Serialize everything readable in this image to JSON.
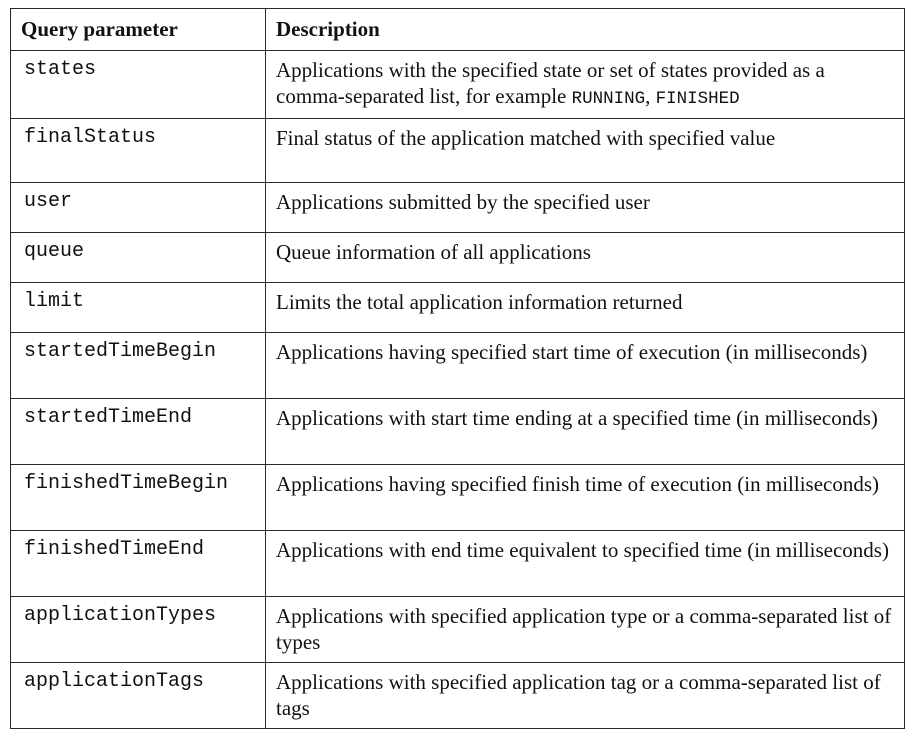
{
  "table": {
    "headers": {
      "param": "Query parameter",
      "description": "Description"
    },
    "rows": [
      {
        "param": "states",
        "description": "Applications with the specified state or set of states provided as a comma-separated list, for example ",
        "description_code_1": "RUNNING",
        "description_sep": ", ",
        "description_code_2": "FINISHED"
      },
      {
        "param": "finalStatus",
        "description": "Final status of the application matched with specified value"
      },
      {
        "param": "user",
        "description": "Applications submitted by the specified user"
      },
      {
        "param": "queue",
        "description": "Queue information of all applications"
      },
      {
        "param": "limit",
        "description": "Limits the total application information returned"
      },
      {
        "param": "startedTimeBegin",
        "description": "Applications having specified start time of execution (in milliseconds)"
      },
      {
        "param": "startedTimeEnd",
        "description": "Applications with start time ending at a specified time (in milliseconds)"
      },
      {
        "param": "finishedTimeBegin",
        "description": "Applications having specified finish time of execution (in milliseconds)"
      },
      {
        "param": "finishedTimeEnd",
        "description": "Applications with end time equivalent to specified time (in milliseconds)"
      },
      {
        "param": "applicationTypes",
        "description": "Applications with specified application type or a comma-separated list of types"
      },
      {
        "param": "applicationTags",
        "description": "Applications with specified application tag or a comma-separated list of tags"
      }
    ]
  }
}
